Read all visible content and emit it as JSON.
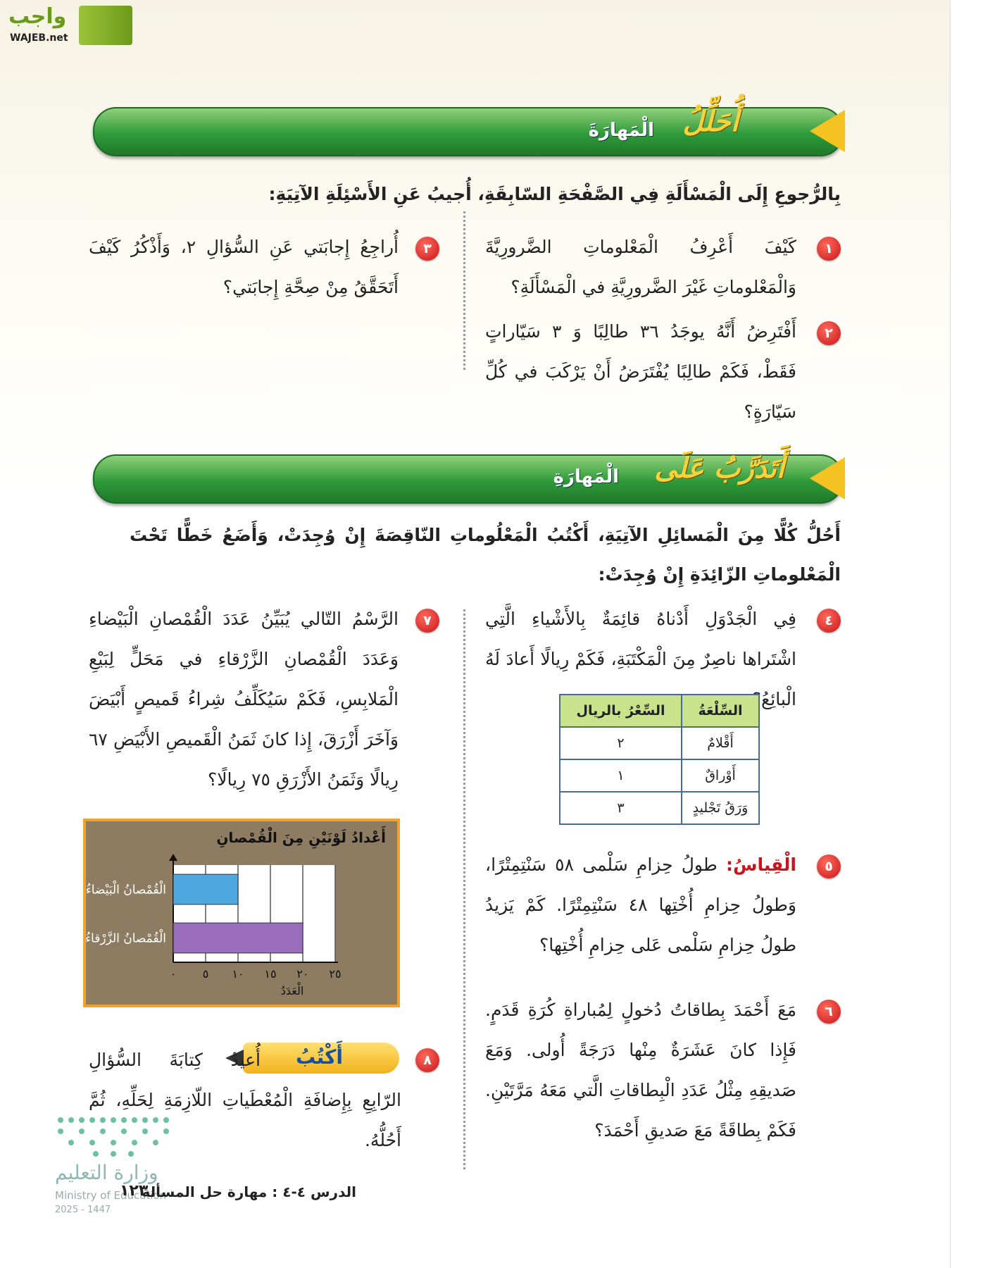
{
  "logo": {
    "name": "واجب",
    "site": "WAJEB.net"
  },
  "section1": {
    "title_main": "أُحَلِّلُ",
    "title_rest": "الْمَهارَةَ",
    "intro": "بِالرُّجوعِ إِلَى الْمَسْأَلَةِ فِي الصَّفْحَةِ السّابِقَةِ، أُجيبُ عَنِ الأَسْئِلَةِ الآتِيَةِ:",
    "questions": [
      {
        "number": "١",
        "text": "كَيْفَ أَعْرِفُ الْمَعْلوماتِ الضَّرورِيَّةَ وَالْمَعْلوماتِ غَيْرَ الضَّرورِيَّةِ في الْمَسْأَلَةِ؟"
      },
      {
        "number": "٢",
        "text": "أَفْتَرِضُ أَنَّهُ يوجَدُ ٣٦ طالِبًا وَ ٣ سَيّاراتٍ فَقَطْ، فَكَمْ طالِبًا يُفْتَرَضُ أَنْ يَرْكَبَ في كُلِّ سَيّارَةٍ؟"
      },
      {
        "number": "٣",
        "text": "أُراجِعُ إِجابَتي عَنِ السُّؤالِ ٢، وَأَذْكُرُ كَيْفَ أَتَحَقَّقُ مِنْ صِحَّةِ إِجابَتي؟"
      }
    ]
  },
  "section2": {
    "title_main": "أَتَدَرَّبُ عَلَى",
    "title_rest": "الْمَهارَةِ",
    "instructions": "أَحُلُّ كُلًّا مِنَ الْمَسائِلِ الآتِيَةِ، أَكْتُبُ الْمَعْلُوماتِ النّاقِصَةَ إِنْ وُجِدَتْ، وَأَضَعُ خَطًّا تَحْتَ الْمَعْلوماتِ الزّائِدَةِ إِنْ وُجِدَتْ:",
    "questions": [
      {
        "number": "٤",
        "text": "فِي الْجَدْوَلِ أَدْناهُ قائِمَةٌ بِالأَشْياءِ الَّتِي اشْتَراها ناصِرٌ مِنَ الْمَكْتَبَةِ، فَكَمْ رِيالًا أَعادَ لَهُ الْبائِعُ؟"
      },
      {
        "number": "٥",
        "label": "الْقِياسُ:",
        "text": "طولُ حِزامِ سَلْمى ٥٨ سَنْتِمِتْرًا، وَطولُ حِزامِ أُخْتِها ٤٨ سَنْتِمِتْرًا. كَمْ يَزيدُ طولُ حِزامِ سَلْمى عَلى حِزامِ أُخْتِها؟"
      },
      {
        "number": "٦",
        "text": "مَعَ أَحْمَدَ بِطاقاتُ دُخولٍ لِمُباراةِ كُرَةِ قَدَمٍ. فَإِذا كانَ عَشَرَةٌ مِنْها دَرَجَةً أُولى. وَمَعَ صَديقِهِ مِثْلُ عَدَدِ الْبِطاقاتِ الَّتي مَعَهُ مَرَّتَيْنِ. فَكَمْ بِطاقَةً مَعَ صَديقِ أَحْمَدَ؟"
      },
      {
        "number": "٧",
        "text": "الرَّسْمُ التّالي يُبَيِّنُ عَدَدَ الْقُمْصانِ الْبَيْضاءِ وَعَدَدَ الْقُمْصانِ الزَّرْقاءِ في مَحَلٍّ لِبَيْعِ الْمَلابِسِ، فَكَمْ سَيُكَلِّفُ شِراءُ قَميصٍ أَبْيَضَ وَآخَرَ أَزْرَقَ، إِذا كانَ ثَمَنُ الْقَميصِ الأَبْيَضِ ٦٧ رِيالًا وَثَمَنُ الأَزْرَقِ ٧٥ رِيالًا؟"
      },
      {
        "number": "٨",
        "badge": "أَكْتُبُ",
        "text": "أُعيدُ كِتابَةَ السُّؤالِ الرّابِعِ بِإِضافَةِ الْمُعْطَياتِ اللّازِمَةِ لِحَلِّهِ، ثُمَّ أَحُلُّهُ."
      }
    ]
  },
  "table": {
    "headers": [
      "السِّلْعَةُ",
      "السِّعْرُ بالريال"
    ],
    "rows": [
      [
        "أَقْلامٌ",
        "٢"
      ],
      [
        "أَوْراقٌ",
        "١"
      ],
      [
        "وَرَقُ تَجْليدٍ",
        "٣"
      ]
    ]
  },
  "chart_data": {
    "type": "bar",
    "orientation": "horizontal",
    "title": "أَعْدادُ لَوْنَيْنِ مِنَ الْقُمْصانِ",
    "categories": [
      "الْقُمْصانُ الْبَيْضاءُ",
      "الْقُمْصانُ الزَّرْقاءُ"
    ],
    "values": [
      10,
      20
    ],
    "colors": [
      "#4ea7de",
      "#9a6cbc"
    ],
    "xlabel": "الْعَدَدُ",
    "xlim": [
      0,
      25
    ],
    "xticks": [
      {
        "value": 0,
        "label": "٠"
      },
      {
        "value": 5,
        "label": "٥"
      },
      {
        "value": 10,
        "label": "١٠"
      },
      {
        "value": 15,
        "label": "١٥"
      },
      {
        "value": 20,
        "label": "٢٠"
      },
      {
        "value": 25,
        "label": "٢٥"
      }
    ],
    "grid": true
  },
  "footer": {
    "lesson": "الدرس ٤-٤ : مهارة حل المسألة",
    "page": "١٢٣",
    "ministry_ar": "وزارة التعليم",
    "ministry_en": "Ministry of Education",
    "year": "2025 - 1447"
  }
}
